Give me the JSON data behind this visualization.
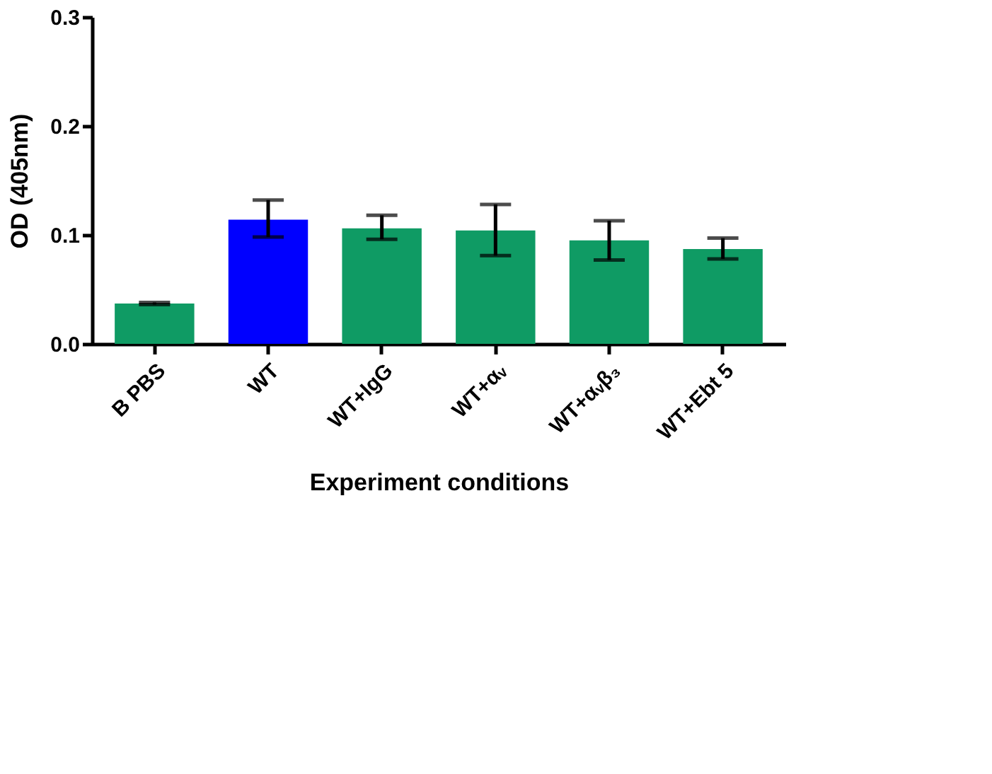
{
  "chart_data": {
    "type": "bar",
    "xlabel": "Experiment conditions",
    "ylabel": "OD (405nm)",
    "categories": [
      "B PBS",
      "WT",
      "WT+IgG",
      "WT+αᵥ",
      "WT+αᵥβ₃",
      "WT+Ebt 5"
    ],
    "values": [
      0.037,
      0.114,
      0.106,
      0.104,
      0.095,
      0.087
    ],
    "colors": [
      "#0f9b64",
      "#0000ff",
      "#0f9b64",
      "#0f9b64",
      "#0f9b64",
      "#0f9b64"
    ],
    "errors": [
      [
        0.036,
        0.038
      ],
      [
        0.098,
        0.132
      ],
      [
        0.096,
        0.118
      ],
      [
        0.081,
        0.128
      ],
      [
        0.077,
        0.113
      ],
      [
        0.078,
        0.097
      ]
    ],
    "ylim": [
      0,
      0.3
    ],
    "yticks": [
      {
        "value": 0,
        "label": "0.0"
      },
      {
        "value": 0.1,
        "label": "0.1"
      },
      {
        "value": 0.2,
        "label": "0.2"
      },
      {
        "value": 0.3,
        "label": "0.3"
      }
    ],
    "grid": false
  }
}
